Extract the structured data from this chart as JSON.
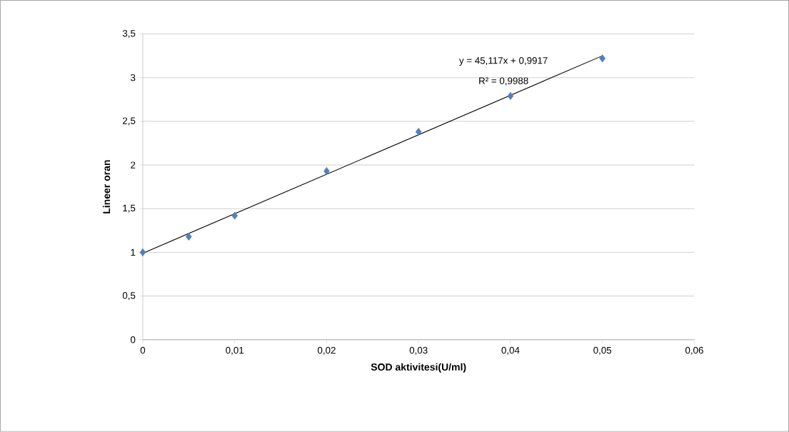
{
  "chart_data": {
    "type": "scatter",
    "xlabel": "SOD aktivitesi(U/ml)",
    "ylabel": "Lineer oran",
    "x": [
      0,
      0.005,
      0.01,
      0.02,
      0.03,
      0.04,
      0.05
    ],
    "series": [
      {
        "color": "#4f81bd",
        "marker": "diamond",
        "values": [
          1.0,
          1.18,
          1.42,
          1.93,
          2.38,
          2.79,
          3.22
        ]
      },
      {
        "type": "line",
        "color": "#000000",
        "line_style": "solid",
        "x": [
          0,
          0.05
        ],
        "values": [
          0.99,
          3.25
        ]
      }
    ],
    "xlim": [
      0,
      0.06
    ],
    "xticks": [
      0,
      {
        "value": 0.01,
        "label": "0,01"
      },
      {
        "value": 0.02,
        "label": "0,02"
      },
      {
        "value": 0.03,
        "label": "0,03"
      },
      {
        "value": 0.04,
        "label": "0,04"
      },
      {
        "value": 0.05,
        "label": "0,05"
      },
      {
        "value": 0.06,
        "label": "0,06"
      }
    ],
    "ylim": [
      0,
      3.5
    ],
    "yticks": [
      0,
      {
        "value": 0.5,
        "label": "0,5"
      },
      1,
      {
        "value": 1.5,
        "label": "1,5"
      },
      2,
      {
        "value": 2.5,
        "label": "2,5"
      },
      3,
      {
        "value": 3.5,
        "label": "3,5"
      }
    ],
    "grid": "y",
    "annotations": [
      "y = 45,117x + 0,9917",
      "R² = 0,9988"
    ]
  }
}
